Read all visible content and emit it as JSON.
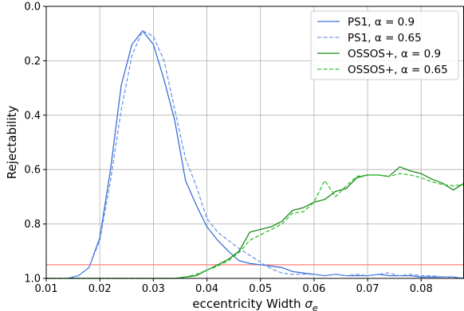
{
  "chart_data": {
    "type": "line",
    "xlabel": "eccentricity Width",
    "xlabel_symbol": "σ",
    "xlabel_subscript": "e",
    "ylabel": "Rejectability",
    "xlim": [
      0.01,
      0.088
    ],
    "ylim": [
      1.0,
      0.0
    ],
    "y_inverted": true,
    "grid": true,
    "legend_position": "top-right",
    "x_ticks": [
      "0.01",
      "0.02",
      "0.03",
      "0.04",
      "0.05",
      "0.06",
      "0.07",
      "0.08"
    ],
    "x_tick_values": [
      0.01,
      0.02,
      0.03,
      0.04,
      0.05,
      0.06,
      0.07,
      0.08
    ],
    "y_ticks": [
      "0.0",
      "0.2",
      "0.4",
      "0.6",
      "0.8",
      "1.0"
    ],
    "y_tick_values": [
      0.0,
      0.2,
      0.4,
      0.6,
      0.8,
      1.0
    ],
    "hline": {
      "y": 0.95,
      "color": "#ff7f73"
    },
    "series": [
      {
        "name": "PS1, α = 0.9",
        "color": "#3a6fd8",
        "dash": "solid",
        "points": [
          [
            0.014,
            1.0
          ],
          [
            0.016,
            0.99
          ],
          [
            0.018,
            0.96
          ],
          [
            0.02,
            0.85
          ],
          [
            0.022,
            0.6
          ],
          [
            0.024,
            0.29
          ],
          [
            0.026,
            0.14
          ],
          [
            0.028,
            0.09
          ],
          [
            0.03,
            0.14
          ],
          [
            0.032,
            0.27
          ],
          [
            0.034,
            0.42
          ],
          [
            0.036,
            0.64
          ],
          [
            0.038,
            0.73
          ],
          [
            0.04,
            0.81
          ],
          [
            0.042,
            0.86
          ],
          [
            0.044,
            0.9
          ],
          [
            0.046,
            0.935
          ],
          [
            0.048,
            0.945
          ],
          [
            0.05,
            0.95
          ],
          [
            0.052,
            0.955
          ],
          [
            0.054,
            0.96
          ],
          [
            0.056,
            0.975
          ],
          [
            0.058,
            0.98
          ],
          [
            0.06,
            0.985
          ],
          [
            0.062,
            0.99
          ],
          [
            0.064,
            0.985
          ],
          [
            0.066,
            0.99
          ],
          [
            0.068,
            0.99
          ],
          [
            0.07,
            0.99
          ],
          [
            0.072,
            0.985
          ],
          [
            0.074,
            0.99
          ],
          [
            0.076,
            0.99
          ],
          [
            0.078,
            0.99
          ],
          [
            0.08,
            0.995
          ],
          [
            0.082,
            0.995
          ],
          [
            0.084,
            0.995
          ],
          [
            0.086,
            0.995
          ],
          [
            0.088,
            1.0
          ]
        ]
      },
      {
        "name": "PS1, α = 0.65",
        "color": "#6f97e6",
        "dash": "dashed",
        "points": [
          [
            0.014,
            1.0
          ],
          [
            0.016,
            0.99
          ],
          [
            0.018,
            0.96
          ],
          [
            0.02,
            0.86
          ],
          [
            0.022,
            0.64
          ],
          [
            0.024,
            0.38
          ],
          [
            0.026,
            0.18
          ],
          [
            0.028,
            0.09
          ],
          [
            0.03,
            0.11
          ],
          [
            0.032,
            0.2
          ],
          [
            0.034,
            0.38
          ],
          [
            0.036,
            0.56
          ],
          [
            0.038,
            0.66
          ],
          [
            0.04,
            0.78
          ],
          [
            0.042,
            0.83
          ],
          [
            0.044,
            0.86
          ],
          [
            0.046,
            0.89
          ],
          [
            0.048,
            0.915
          ],
          [
            0.05,
            0.94
          ],
          [
            0.052,
            0.965
          ],
          [
            0.054,
            0.98
          ],
          [
            0.056,
            0.985
          ],
          [
            0.058,
            0.985
          ],
          [
            0.06,
            0.985
          ],
          [
            0.062,
            0.99
          ],
          [
            0.064,
            0.985
          ],
          [
            0.066,
            0.99
          ],
          [
            0.068,
            0.985
          ],
          [
            0.07,
            0.99
          ],
          [
            0.072,
            0.985
          ],
          [
            0.074,
            0.98
          ],
          [
            0.076,
            0.99
          ],
          [
            0.078,
            0.985
          ],
          [
            0.08,
            0.99
          ],
          [
            0.082,
            0.99
          ],
          [
            0.084,
            0.995
          ],
          [
            0.086,
            0.995
          ],
          [
            0.088,
            1.0
          ]
        ]
      },
      {
        "name": "OSSOS+, α = 0.9",
        "color": "#1a8a1a",
        "dash": "solid",
        "points": [
          [
            0.01,
            1.0
          ],
          [
            0.034,
            1.0
          ],
          [
            0.036,
            0.995
          ],
          [
            0.038,
            0.99
          ],
          [
            0.04,
            0.97
          ],
          [
            0.042,
            0.95
          ],
          [
            0.044,
            0.93
          ],
          [
            0.046,
            0.9
          ],
          [
            0.048,
            0.83
          ],
          [
            0.05,
            0.82
          ],
          [
            0.052,
            0.81
          ],
          [
            0.054,
            0.79
          ],
          [
            0.056,
            0.75
          ],
          [
            0.058,
            0.74
          ],
          [
            0.06,
            0.72
          ],
          [
            0.062,
            0.71
          ],
          [
            0.064,
            0.68
          ],
          [
            0.066,
            0.67
          ],
          [
            0.068,
            0.63
          ],
          [
            0.07,
            0.62
          ],
          [
            0.072,
            0.62
          ],
          [
            0.074,
            0.625
          ],
          [
            0.076,
            0.59
          ],
          [
            0.078,
            0.605
          ],
          [
            0.08,
            0.615
          ],
          [
            0.082,
            0.635
          ],
          [
            0.084,
            0.65
          ],
          [
            0.086,
            0.675
          ],
          [
            0.088,
            0.65
          ]
        ]
      },
      {
        "name": "OSSOS+, α = 0.65",
        "color": "#33c233",
        "dash": "dashed",
        "points": [
          [
            0.01,
            1.0
          ],
          [
            0.034,
            1.0
          ],
          [
            0.036,
            0.995
          ],
          [
            0.038,
            0.985
          ],
          [
            0.04,
            0.97
          ],
          [
            0.042,
            0.955
          ],
          [
            0.044,
            0.935
          ],
          [
            0.046,
            0.905
          ],
          [
            0.048,
            0.86
          ],
          [
            0.05,
            0.84
          ],
          [
            0.052,
            0.82
          ],
          [
            0.054,
            0.8
          ],
          [
            0.056,
            0.76
          ],
          [
            0.058,
            0.755
          ],
          [
            0.06,
            0.72
          ],
          [
            0.062,
            0.64
          ],
          [
            0.064,
            0.7
          ],
          [
            0.066,
            0.66
          ],
          [
            0.068,
            0.625
          ],
          [
            0.07,
            0.62
          ],
          [
            0.072,
            0.62
          ],
          [
            0.074,
            0.625
          ],
          [
            0.076,
            0.615
          ],
          [
            0.078,
            0.62
          ],
          [
            0.08,
            0.63
          ],
          [
            0.082,
            0.645
          ],
          [
            0.084,
            0.655
          ],
          [
            0.086,
            0.66
          ],
          [
            0.088,
            0.655
          ]
        ]
      }
    ]
  }
}
